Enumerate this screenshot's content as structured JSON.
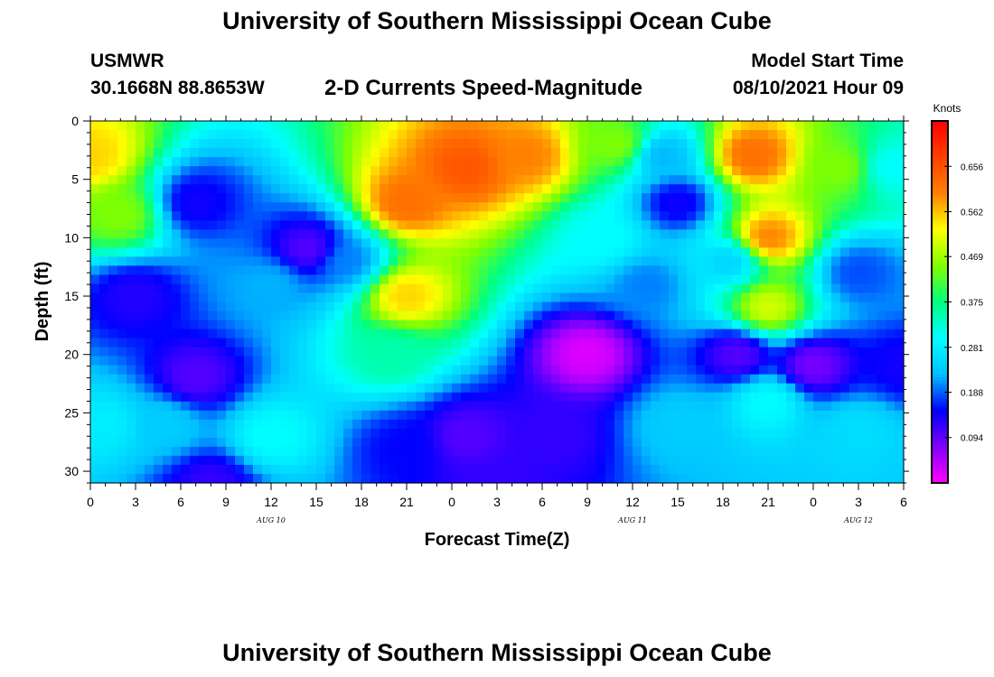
{
  "header": {
    "title": "University of Southern Mississippi Ocean Cube",
    "station": "USMWR",
    "coords": "30.1668N  88.8653W",
    "subtitle": "2-D Currents Speed-Magnitude",
    "start_label": "Model Start Time",
    "start_value": "08/10/2021 Hour 09"
  },
  "footer": {
    "title": "University of Southern Mississippi Ocean Cube"
  },
  "chart_data": {
    "type": "heatmap",
    "title": "2-D Currents Speed-Magnitude",
    "xlabel": "Forecast Time(Z)",
    "ylabel": "Depth (ft)",
    "x_tick_labels": [
      "0",
      "3",
      "6",
      "9",
      "12",
      "15",
      "18",
      "21",
      "0",
      "3",
      "6",
      "9",
      "12",
      "15",
      "18",
      "21",
      "0",
      "3",
      "6"
    ],
    "x_range_hours": [
      0,
      54
    ],
    "date_labels": [
      {
        "label": "AUG 10",
        "hour": 12
      },
      {
        "label": "AUG 11",
        "hour": 36
      },
      {
        "label": "AUG 12",
        "hour": 51
      }
    ],
    "y_ticks": [
      0,
      5,
      10,
      15,
      20,
      25,
      30
    ],
    "y_range": [
      0,
      31
    ],
    "y_inverted": true,
    "colorbar": {
      "label": "Knots",
      "ticks": [
        "0.656",
        "0.562",
        "0.469",
        "0.375",
        "0.281",
        "0.188",
        "0.094"
      ],
      "tick_values": [
        0.656,
        0.562,
        0.469,
        0.375,
        0.281,
        0.188,
        0.094
      ],
      "range": [
        0.0,
        0.75
      ],
      "colors": [
        "#ff00ff",
        "#8000ff",
        "#0000ff",
        "#00c0ff",
        "#00ffff",
        "#00ff80",
        "#80ff00",
        "#ffff00",
        "#ff8000",
        "#ff4000",
        "#ff0000"
      ]
    },
    "field_features": [
      {
        "t": 0,
        "d": 3,
        "v": 0.55
      },
      {
        "t": 2,
        "d": 8,
        "v": 0.45
      },
      {
        "t": 7,
        "d": 7,
        "v": 0.14
      },
      {
        "t": 7,
        "d": 22,
        "v": 0.1
      },
      {
        "t": 3,
        "d": 15,
        "v": 0.13
      },
      {
        "t": 1,
        "d": 26,
        "v": 0.28
      },
      {
        "t": 5,
        "d": 26,
        "v": 0.24
      },
      {
        "t": 12,
        "d": 27,
        "v": 0.3
      },
      {
        "t": 14.5,
        "d": 11,
        "v": 0.1
      },
      {
        "t": 12,
        "d": 14,
        "v": 0.22
      },
      {
        "t": 17,
        "d": 12,
        "v": 0.2
      },
      {
        "t": 21,
        "d": 7,
        "v": 0.62
      },
      {
        "t": 21,
        "d": 15,
        "v": 0.55
      },
      {
        "t": 25,
        "d": 4,
        "v": 0.65
      },
      {
        "t": 29,
        "d": 3,
        "v": 0.6
      },
      {
        "t": 20,
        "d": 20,
        "v": 0.35
      },
      {
        "t": 21,
        "d": 28,
        "v": 0.15
      },
      {
        "t": 25,
        "d": 27,
        "v": 0.1
      },
      {
        "t": 33,
        "d": 20,
        "v": 0.02
      },
      {
        "t": 31,
        "d": 27,
        "v": 0.12
      },
      {
        "t": 34,
        "d": 10,
        "v": 0.3
      },
      {
        "t": 35,
        "d": 2,
        "v": 0.45
      },
      {
        "t": 37,
        "d": 14,
        "v": 0.2
      },
      {
        "t": 39,
        "d": 7,
        "v": 0.14
      },
      {
        "t": 38,
        "d": 3,
        "v": 0.22
      },
      {
        "t": 39,
        "d": 26,
        "v": 0.24
      },
      {
        "t": 43,
        "d": 20,
        "v": 0.1
      },
      {
        "t": 42.5,
        "d": 12,
        "v": 0.25
      },
      {
        "t": 44,
        "d": 3,
        "v": 0.62
      },
      {
        "t": 45,
        "d": 10,
        "v": 0.6
      },
      {
        "t": 45,
        "d": 16,
        "v": 0.5
      },
      {
        "t": 45,
        "d": 24,
        "v": 0.3
      },
      {
        "t": 48,
        "d": 21,
        "v": 0.08
      },
      {
        "t": 50,
        "d": 4,
        "v": 0.45
      },
      {
        "t": 53,
        "d": 4,
        "v": 0.3
      },
      {
        "t": 51,
        "d": 13,
        "v": 0.18
      },
      {
        "t": 51,
        "d": 26.5,
        "v": 0.26
      },
      {
        "t": 54,
        "d": 21,
        "v": 0.14
      },
      {
        "t": 27,
        "d": 31,
        "v": 0.12
      },
      {
        "t": 8,
        "d": 31,
        "v": 0.12
      }
    ]
  }
}
